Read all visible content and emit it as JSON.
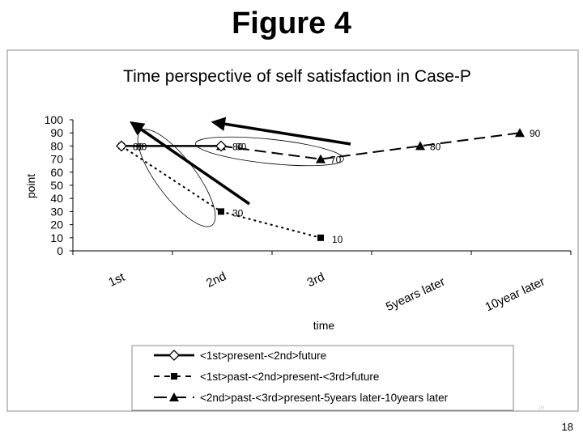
{
  "slide": {
    "heading": "Figure 4",
    "page_number": "18",
    "faint_mark": "18"
  },
  "chart_data": {
    "type": "line",
    "title": "Time perspective of self satisfaction in Case-P",
    "xlabel": "time",
    "ylabel": "point",
    "categories": [
      "1st",
      "2nd",
      "3rd",
      "5years later",
      "10year later"
    ],
    "ylim": [
      0,
      100
    ],
    "yticks": [
      0,
      10,
      20,
      30,
      40,
      50,
      60,
      70,
      80,
      90,
      100
    ],
    "grid": false,
    "legend_position": "bottom",
    "series": [
      {
        "name": "<1st>present-<2nd>future",
        "values": [
          80,
          80,
          null,
          null,
          null
        ],
        "labels": [
          "80",
          "80",
          "",
          "",
          ""
        ],
        "marker": "diamond",
        "line_style": "solid"
      },
      {
        "name": "<1st>past-<2nd>present-<3rd>future",
        "values": [
          80,
          30,
          10,
          null,
          null
        ],
        "labels": [
          "80",
          "30",
          "10",
          "",
          ""
        ],
        "marker": "square",
        "line_style": "dotted"
      },
      {
        "name": "<2nd>past-<3rd>present-5years later-10years later",
        "values": [
          null,
          80,
          70,
          80,
          90
        ],
        "labels": [
          "",
          "80",
          "70",
          "80",
          "90"
        ],
        "marker": "triangle",
        "line_style": "dashed"
      }
    ],
    "colors": {
      "series": "#000000",
      "frame": "#888888",
      "plot_bg": "#ffffff"
    },
    "annotations": "arrows pointing back in time and ellipses around grouped points"
  }
}
